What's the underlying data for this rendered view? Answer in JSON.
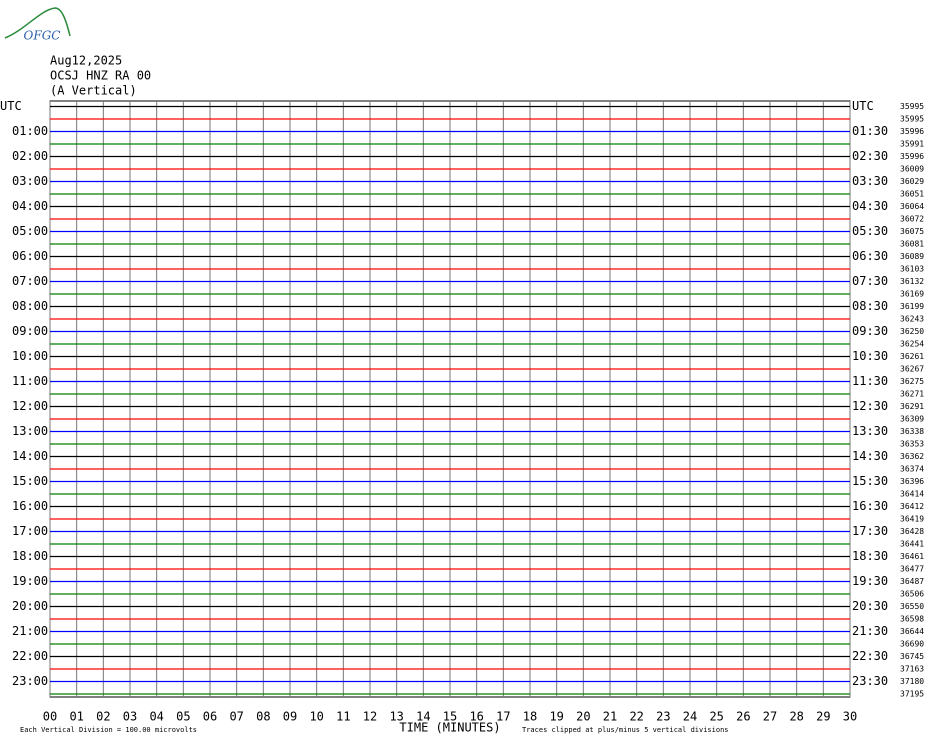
{
  "chart_data": {
    "type": "helicorder",
    "logo": "OFGC",
    "header": [
      "Aug12,2025",
      "OCSJ HNZ RA 00",
      "(A Vertical)"
    ],
    "left_labels": [
      "UTC",
      "01:00",
      "02:00",
      "03:00",
      "04:00",
      "05:00",
      "06:00",
      "07:00",
      "08:00",
      "09:00",
      "10:00",
      "11:00",
      "12:00",
      "13:00",
      "14:00",
      "15:00",
      "16:00",
      "17:00",
      "18:00",
      "19:00",
      "20:00",
      "21:00",
      "22:00",
      "23:00"
    ],
    "right_labels": [
      "UTC",
      "01:30",
      "02:30",
      "03:30",
      "04:30",
      "05:30",
      "06:30",
      "07:30",
      "08:30",
      "09:30",
      "10:30",
      "11:30",
      "12:30",
      "13:30",
      "14:30",
      "15:30",
      "16:30",
      "17:30",
      "18:30",
      "19:30",
      "20:30",
      "21:30",
      "22:30",
      "23:30"
    ],
    "trace_means": [
      35995,
      35995,
      35996,
      35991,
      35996,
      36009,
      36029,
      36051,
      36064,
      36072,
      36075,
      36081,
      36089,
      36103,
      36132,
      36169,
      36199,
      36243,
      36250,
      36254,
      36261,
      36267,
      36275,
      36271,
      36291,
      36309,
      36338,
      36353,
      36362,
      36374,
      36396,
      36414,
      36412,
      36419,
      36428,
      36441,
      36461,
      36477,
      36487,
      36506,
      36550,
      36598,
      36644,
      36690,
      36745,
      37163,
      37180,
      37195
    ],
    "trace_colors": [
      "#000000",
      "#ff0000",
      "#0000ff",
      "#008000"
    ],
    "xlabel": "TIME (MINUTES)",
    "xlim": [
      0,
      30
    ],
    "xticks": [
      {
        "value": 0,
        "label": "00"
      },
      {
        "value": 1,
        "label": "01"
      },
      {
        "value": 2,
        "label": "02"
      },
      {
        "value": 3,
        "label": "03"
      },
      {
        "value": 4,
        "label": "04"
      },
      {
        "value": 5,
        "label": "05"
      },
      {
        "value": 6,
        "label": "06"
      },
      {
        "value": 7,
        "label": "07"
      },
      {
        "value": 8,
        "label": "08"
      },
      {
        "value": 9,
        "label": "09"
      },
      10,
      11,
      12,
      13,
      14,
      15,
      16,
      17,
      18,
      19,
      20,
      21,
      22,
      23,
      24,
      25,
      26,
      27,
      28,
      29,
      30
    ],
    "footer_left": "Each Vertical Division =  100.00 microvolts",
    "footer_right": "Traces clipped at plus/minus 5 vertical divisions"
  }
}
